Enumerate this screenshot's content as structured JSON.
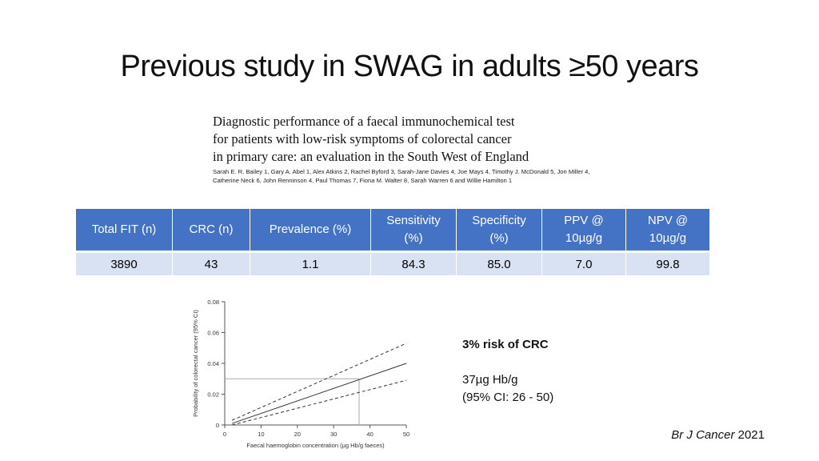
{
  "slide": {
    "title": "Previous study in SWAG in adults ≥50 years"
  },
  "paper": {
    "title_lines": [
      "Diagnostic performance of a faecal immunochemical test",
      "for patients with low-risk symptoms of colorectal cancer",
      "in primary care: an evaluation in the South West of England"
    ],
    "authors_lines": [
      "Sarah E. R. Bailey 1, Gary A. Abel 1, Alex Atkins 2, Rachel Byford 3, Sarah-Jane Davies 4, Joe Mays 4, Timothy J. McDonald 5, Jon Miller 4,",
      "Catherine Neck 6, John Renninson 4, Paul Thomas 7, Fiona M. Walter 8, Sarah Warren 6 and Willie Hamilton 1"
    ]
  },
  "table": {
    "headers": [
      "Total FIT (n)",
      "CRC (n)",
      "Prevalence (%)",
      "Sensitivity (%)",
      "Specificity (%)",
      "PPV @ 10µg/g",
      "NPV @ 10µg/g"
    ],
    "header_lines": [
      [
        "Total FIT (n)"
      ],
      [
        "CRC (n)"
      ],
      [
        "Prevalence (%)"
      ],
      [
        "Sensitivity",
        "(%)"
      ],
      [
        "Specificity",
        "(%)"
      ],
      [
        "PPV @",
        "10µg/g"
      ],
      [
        "NPV @",
        "10µg/g"
      ]
    ],
    "row": [
      "3890",
      "43",
      "1.1",
      "84.3",
      "85.0",
      "7.0",
      "99.8"
    ]
  },
  "chart_data": {
    "type": "line",
    "xlabel": "Faecal haemoglobin concentration (µg Hb/g faeces)",
    "ylabel": "Probability of colorectal cancer (95% CI)",
    "xlim": [
      0,
      50
    ],
    "ylim": [
      0,
      0.08
    ],
    "xticks": [
      "0",
      "10",
      "20",
      "30",
      "40",
      "50"
    ],
    "yticks": [
      "0",
      "0.02",
      "0.04",
      "0.06",
      "0.08"
    ],
    "series": [
      {
        "name": "estimate",
        "style": "solid",
        "x": [
          2,
          50
        ],
        "y": [
          0.001,
          0.04
        ]
      },
      {
        "name": "upper 95% CI",
        "style": "dashed",
        "x": [
          2,
          50
        ],
        "y": [
          0.003,
          0.053
        ]
      },
      {
        "name": "lower 95% CI",
        "style": "dashed",
        "x": [
          2,
          50
        ],
        "y": [
          0.0,
          0.029
        ]
      }
    ],
    "reference": {
      "x": 37,
      "y": 0.03
    }
  },
  "annotation": {
    "heading": "3% risk of CRC",
    "line1": "37µg Hb/g",
    "line2": "(95% CI: 26 - 50)"
  },
  "citation": {
    "journal": "Br J Cancer",
    "year": "2021"
  }
}
